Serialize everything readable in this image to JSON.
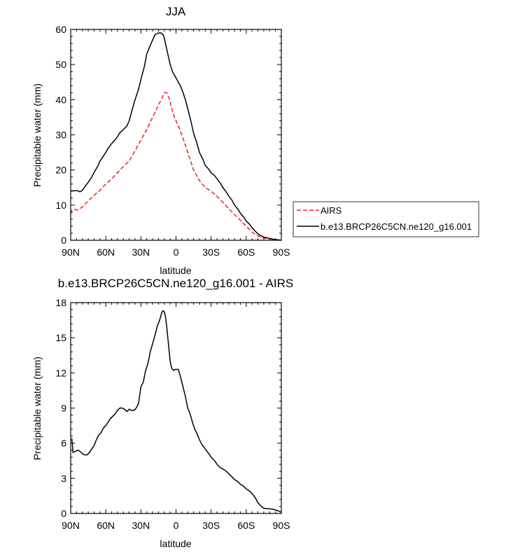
{
  "chart_data": [
    {
      "type": "line",
      "title": "JJA",
      "xlabel": "latitude",
      "ylabel": "Precipitable water (mm)",
      "xlim": [
        90,
        -90
      ],
      "ylim": [
        0,
        60
      ],
      "xticks": [
        {
          "value": 90,
          "label": "90N"
        },
        {
          "value": 60,
          "label": "60N"
        },
        {
          "value": 30,
          "label": "30N"
        },
        {
          "value": 0,
          "label": "0"
        },
        {
          "value": -30,
          "label": "30S"
        },
        {
          "value": -60,
          "label": "60S"
        },
        {
          "value": -90,
          "label": "90S"
        }
      ],
      "yticks": [
        {
          "value": 0,
          "label": "0"
        },
        {
          "value": 10,
          "label": "10"
        },
        {
          "value": 20,
          "label": "20"
        },
        {
          "value": 30,
          "label": "30"
        },
        {
          "value": 40,
          "label": "40"
        },
        {
          "value": 50,
          "label": "50"
        },
        {
          "value": 60,
          "label": "60"
        }
      ],
      "legend": {
        "position": "outside-right",
        "entries": [
          "AIRS",
          "b.e13.BRCP26C5CN.ne120_g16.001"
        ]
      },
      "series": [
        {
          "name": "AIRS",
          "style": "dashed",
          "color": "#e8281e",
          "x": [
            90,
            89,
            87,
            84,
            80,
            75,
            70,
            65,
            60,
            55,
            50,
            45,
            40,
            35,
            30,
            25,
            20,
            15,
            12,
            10,
            8,
            6,
            4,
            2,
            0,
            -2,
            -5,
            -10,
            -15,
            -20,
            -25,
            -30,
            -35,
            -40,
            -45,
            -50,
            -55,
            -60,
            -65,
            -70,
            -75,
            -80,
            -85,
            -88,
            -90
          ],
          "y": [
            7.5,
            8.5,
            8.8,
            8.6,
            9.5,
            11.2,
            12.8,
            14.2,
            16.0,
            17.5,
            19.2,
            21.0,
            22.5,
            25.5,
            28.5,
            31.5,
            35.0,
            38.5,
            40.5,
            42.0,
            42.0,
            40.5,
            38.0,
            35.5,
            34.0,
            32.5,
            30.0,
            25.0,
            20.0,
            17.0,
            15.0,
            14.0,
            12.5,
            10.8,
            9.0,
            7.3,
            5.7,
            4.0,
            2.3,
            1.2,
            0.6,
            0.4,
            0.2,
            0.1,
            0.0
          ]
        },
        {
          "name": "b.e13.BRCP26C5CN.ne120_g16.001",
          "style": "solid",
          "color": "#000000",
          "x": [
            90,
            87,
            84,
            82,
            80,
            78,
            75,
            72,
            70,
            67,
            65,
            62,
            60,
            58,
            55,
            52,
            50,
            48,
            45,
            42,
            40,
            38,
            35,
            32,
            30,
            27,
            25,
            22,
            20,
            18,
            15,
            13,
            11,
            10,
            9,
            8,
            7,
            6,
            5,
            4,
            3,
            2,
            1,
            0,
            -2,
            -4,
            -6,
            -8,
            -10,
            -13,
            -15,
            -18,
            -20,
            -23,
            -25,
            -28,
            -30,
            -33,
            -35,
            -38,
            -40,
            -43,
            -45,
            -48,
            -50,
            -53,
            -55,
            -58,
            -60,
            -63,
            -65,
            -68,
            -70,
            -73,
            -75,
            -78,
            -80,
            -83,
            -85,
            -88,
            -90
          ],
          "y": [
            14.0,
            14.1,
            14.1,
            13.8,
            14.2,
            15.2,
            16.5,
            18.0,
            19.3,
            21.0,
            22.5,
            24.0,
            25.0,
            26.2,
            27.5,
            28.6,
            29.5,
            30.6,
            31.5,
            32.5,
            34.0,
            36.5,
            40.0,
            43.0,
            45.8,
            49.5,
            53.0,
            55.5,
            57.0,
            58.5,
            59.0,
            59.0,
            58.5,
            57.5,
            56.0,
            54.5,
            53.0,
            51.5,
            50.0,
            49.0,
            48.0,
            47.3,
            46.8,
            46.2,
            45.0,
            43.8,
            42.0,
            40.0,
            37.5,
            33.5,
            30.5,
            27.5,
            25.0,
            23.0,
            21.3,
            20.2,
            19.2,
            18.4,
            17.5,
            16.2,
            15.0,
            13.7,
            12.6,
            11.3,
            10.0,
            8.8,
            7.7,
            6.5,
            5.5,
            4.5,
            3.5,
            2.5,
            1.8,
            1.2,
            0.9,
            0.7,
            0.5,
            0.3,
            0.2,
            0.1,
            0.0
          ]
        }
      ]
    },
    {
      "type": "line",
      "title": "b.e13.BRCP26C5CN.ne120_g16.001 - AIRS",
      "xlabel": "latitude",
      "ylabel": "Precipitable water (mm)",
      "xlim": [
        90,
        -90
      ],
      "ylim": [
        0,
        18
      ],
      "xticks": [
        {
          "value": 90,
          "label": "90N"
        },
        {
          "value": 60,
          "label": "60N"
        },
        {
          "value": 30,
          "label": "30N"
        },
        {
          "value": 0,
          "label": "0"
        },
        {
          "value": -30,
          "label": "30S"
        },
        {
          "value": -60,
          "label": "60S"
        },
        {
          "value": -90,
          "label": "90S"
        }
      ],
      "yticks": [
        {
          "value": 0,
          "label": "0"
        },
        {
          "value": 3,
          "label": "3"
        },
        {
          "value": 6,
          "label": "6"
        },
        {
          "value": 9,
          "label": "9"
        },
        {
          "value": 12,
          "label": "12"
        },
        {
          "value": 15,
          "label": "15"
        },
        {
          "value": 18,
          "label": "18"
        }
      ],
      "series": [
        {
          "name": "b.e13.BRCP26C5CN.ne120_g16.001 - AIRS",
          "style": "solid",
          "color": "#000000",
          "x": [
            89,
            88,
            86,
            84,
            82,
            80,
            78,
            76,
            74,
            72,
            70,
            68,
            66,
            64,
            62,
            60,
            58,
            56,
            54,
            52,
            50,
            48,
            46,
            44,
            42,
            40,
            38,
            36,
            34,
            32,
            30,
            28,
            26,
            24,
            22,
            20,
            18,
            16,
            14,
            12,
            11,
            10,
            9,
            8,
            7,
            6,
            5,
            4,
            3,
            2,
            1,
            0,
            -2,
            -4,
            -6,
            -8,
            -10,
            -12,
            -14,
            -16,
            -18,
            -20,
            -22,
            -25,
            -28,
            -30,
            -33,
            -35,
            -38,
            -40,
            -43,
            -45,
            -48,
            -50,
            -53,
            -55,
            -58,
            -60,
            -63,
            -65,
            -68,
            -70,
            -73,
            -75,
            -78,
            -80,
            -83,
            -85,
            -88,
            -90
          ],
          "y": [
            6.4,
            5.2,
            5.3,
            5.4,
            5.3,
            5.1,
            5.0,
            5.0,
            5.2,
            5.5,
            5.8,
            6.3,
            6.7,
            6.9,
            7.3,
            7.5,
            7.8,
            8.1,
            8.3,
            8.5,
            8.8,
            9.0,
            9.0,
            8.9,
            8.7,
            8.9,
            8.8,
            8.8,
            9.0,
            9.4,
            10.8,
            11.2,
            12.2,
            12.8,
            13.8,
            14.5,
            15.2,
            16.0,
            16.5,
            17.2,
            17.3,
            17.2,
            16.8,
            16.0,
            15.0,
            14.0,
            13.0,
            12.5,
            12.3,
            12.2,
            12.3,
            12.3,
            12.3,
            11.6,
            10.8,
            10.0,
            9.0,
            8.5,
            7.8,
            7.2,
            6.8,
            6.3,
            5.9,
            5.5,
            5.1,
            4.8,
            4.5,
            4.2,
            3.9,
            3.8,
            3.6,
            3.4,
            3.1,
            2.9,
            2.7,
            2.5,
            2.3,
            2.1,
            1.9,
            1.7,
            1.3,
            0.9,
            0.6,
            0.45,
            0.4,
            0.4,
            0.35,
            0.3,
            0.2,
            0.1
          ]
        }
      ]
    }
  ]
}
